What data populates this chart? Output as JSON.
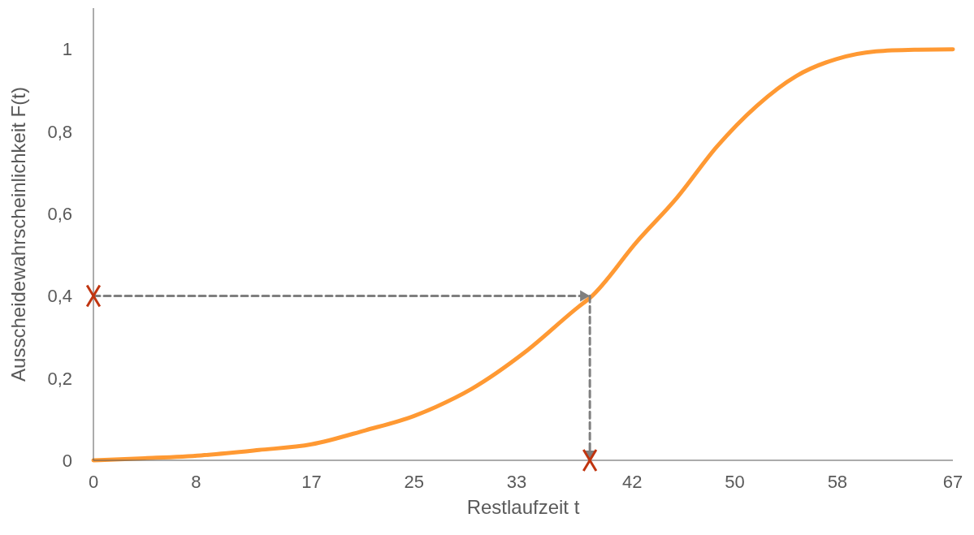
{
  "chart_data": {
    "type": "line",
    "xlabel": "Restlaufzeit t",
    "ylabel": "Ausscheidewahrscheinlichkeit F(t)",
    "xlim": [
      0,
      67
    ],
    "xticks": [
      0,
      8,
      17,
      25,
      33,
      42,
      50,
      58,
      67
    ],
    "ylim": [
      0,
      1.1
    ],
    "yticks": [
      0,
      {
        "value": 0.2,
        "label": "0,2"
      },
      {
        "value": 0.4,
        "label": "0,4"
      },
      {
        "value": 0.6,
        "label": "0,6"
      },
      {
        "value": 0.8,
        "label": "0,8"
      },
      1
    ],
    "grid": false,
    "legend": false,
    "series": [
      {
        "color": "#ff9933",
        "x": [
          0,
          4,
          8.4,
          12.9,
          17,
          21.2,
          25,
          26.7,
          29.5,
          33.6,
          37.8,
          38.7,
          42.4,
          45.5,
          48.6,
          51.7,
          54.8,
          57.9,
          61,
          64,
          67
        ],
        "values": [
          0,
          0.005,
          0.012,
          0.025,
          0.039,
          0.073,
          0.108,
          0.13,
          0.174,
          0.262,
          0.373,
          0.395,
          0.533,
          0.639,
          0.763,
          0.862,
          0.935,
          0.976,
          0.995,
          0.999,
          1.0
        ],
        "marker": "none",
        "line_style": "solid"
      },
      {
        "type": "line",
        "color": "#7f7f7f",
        "x": [
          0,
          38.7,
          38.7
        ],
        "values": [
          0.4,
          0.4,
          0
        ],
        "line_style": "dashed"
      },
      {
        "type": "scatter",
        "color": "#c0340f",
        "x": [
          0,
          38.7
        ],
        "values": [
          0.4,
          0
        ],
        "marker": "cross"
      }
    ]
  }
}
